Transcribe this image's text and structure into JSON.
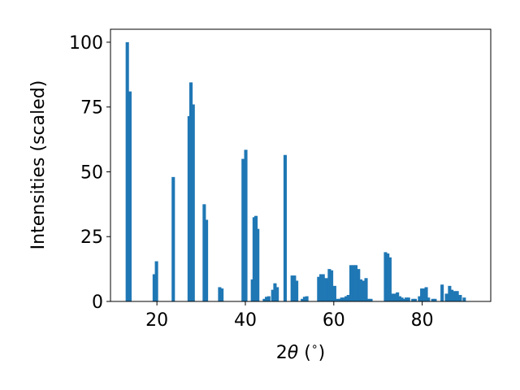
{
  "chart_data": {
    "type": "bar",
    "xlabel_prefix": "2",
    "xlabel_theta": "θ",
    "xlabel_unit_open": " (",
    "xlabel_unit_deg": "∘",
    "xlabel_unit_close": ")",
    "ylabel": "Intensities (scaled)",
    "xlim": [
      9.5,
      95.5
    ],
    "ylim": [
      0,
      105
    ],
    "xticks": [
      20,
      40,
      60,
      80
    ],
    "yticks": [
      0,
      25,
      50,
      75,
      100
    ],
    "bar_width": 0.75,
    "color": "#1f77b4",
    "grid": false,
    "points": [
      [
        13.3,
        100
      ],
      [
        13.9,
        81
      ],
      [
        19.4,
        10.5
      ],
      [
        19.9,
        15.5
      ],
      [
        23.7,
        48
      ],
      [
        27.3,
        71.5
      ],
      [
        27.7,
        84.5
      ],
      [
        28.2,
        76
      ],
      [
        30.7,
        37.5
      ],
      [
        31.2,
        31.5
      ],
      [
        34.2,
        5.5
      ],
      [
        34.7,
        5
      ],
      [
        39.5,
        55
      ],
      [
        40.1,
        58.5
      ],
      [
        41.6,
        8.5
      ],
      [
        42.0,
        32.5
      ],
      [
        42.4,
        33
      ],
      [
        42.8,
        28
      ],
      [
        44.3,
        1
      ],
      [
        44.8,
        1.8
      ],
      [
        45.3,
        2
      ],
      [
        46.2,
        4.5
      ],
      [
        46.7,
        7
      ],
      [
        47.2,
        5.5
      ],
      [
        49.0,
        56.5
      ],
      [
        50.6,
        10
      ],
      [
        51.1,
        10
      ],
      [
        51.6,
        8
      ],
      [
        52.9,
        1
      ],
      [
        53.4,
        1.8
      ],
      [
        53.9,
        2
      ],
      [
        56.6,
        9.5
      ],
      [
        57.1,
        10.5
      ],
      [
        57.6,
        10.5
      ],
      [
        58.3,
        9
      ],
      [
        59.0,
        12.5
      ],
      [
        59.5,
        12
      ],
      [
        60.2,
        6
      ],
      [
        60.8,
        1
      ],
      [
        61.3,
        1
      ],
      [
        61.8,
        1.5
      ],
      [
        62.3,
        1.5
      ],
      [
        62.8,
        2
      ],
      [
        63.3,
        2.5
      ],
      [
        63.9,
        14
      ],
      [
        64.5,
        14
      ],
      [
        65.0,
        14
      ],
      [
        65.6,
        12.5
      ],
      [
        66.1,
        8.5
      ],
      [
        66.7,
        8
      ],
      [
        67.3,
        9
      ],
      [
        67.9,
        1
      ],
      [
        68.4,
        1
      ],
      [
        71.7,
        19
      ],
      [
        72.2,
        18.5
      ],
      [
        72.7,
        17
      ],
      [
        73.2,
        3
      ],
      [
        73.8,
        3
      ],
      [
        74.4,
        3.5
      ],
      [
        74.9,
        2
      ],
      [
        75.4,
        1.5
      ],
      [
        75.9,
        1
      ],
      [
        76.4,
        1.5
      ],
      [
        76.9,
        1.5
      ],
      [
        77.9,
        1
      ],
      [
        78.4,
        1
      ],
      [
        79.4,
        2
      ],
      [
        79.9,
        5
      ],
      [
        80.4,
        5
      ],
      [
        80.9,
        5.5
      ],
      [
        81.4,
        1.5
      ],
      [
        82.4,
        1
      ],
      [
        82.9,
        1
      ],
      [
        84.5,
        6.5
      ],
      [
        85.5,
        3
      ],
      [
        86.2,
        6
      ],
      [
        86.7,
        4.5
      ],
      [
        87.3,
        4
      ],
      [
        87.9,
        4
      ],
      [
        88.6,
        2.5
      ],
      [
        89.5,
        1.5
      ]
    ]
  }
}
